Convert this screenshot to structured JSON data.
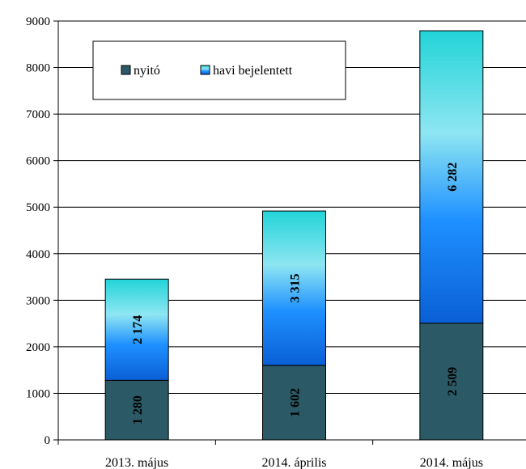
{
  "chart_data": {
    "type": "bar",
    "stacked": true,
    "categories": [
      "2013. május",
      "2014. április",
      "2014. május"
    ],
    "series": [
      {
        "name": "nyitó",
        "values": [
          1280,
          1602,
          2509
        ],
        "labels": [
          "1 280",
          "1 602",
          "2 509"
        ],
        "color": "#2b5a66"
      },
      {
        "name": "havi bejelentett",
        "values": [
          2174,
          3315,
          6282
        ],
        "labels": [
          "2 174",
          "3 315",
          "6 282"
        ],
        "color": "#1e90ff"
      }
    ],
    "title": "",
    "xlabel": "",
    "ylabel": "",
    "ylim": [
      0,
      9000
    ],
    "yticks": [
      0,
      1000,
      2000,
      3000,
      4000,
      5000,
      6000,
      7000,
      8000,
      9000
    ],
    "grid": true,
    "legend_position": "top-left",
    "gradient_colors": {
      "top": "#22d4d8",
      "middle": "#8ee6f2",
      "bottom": "#0a5fd6"
    }
  }
}
